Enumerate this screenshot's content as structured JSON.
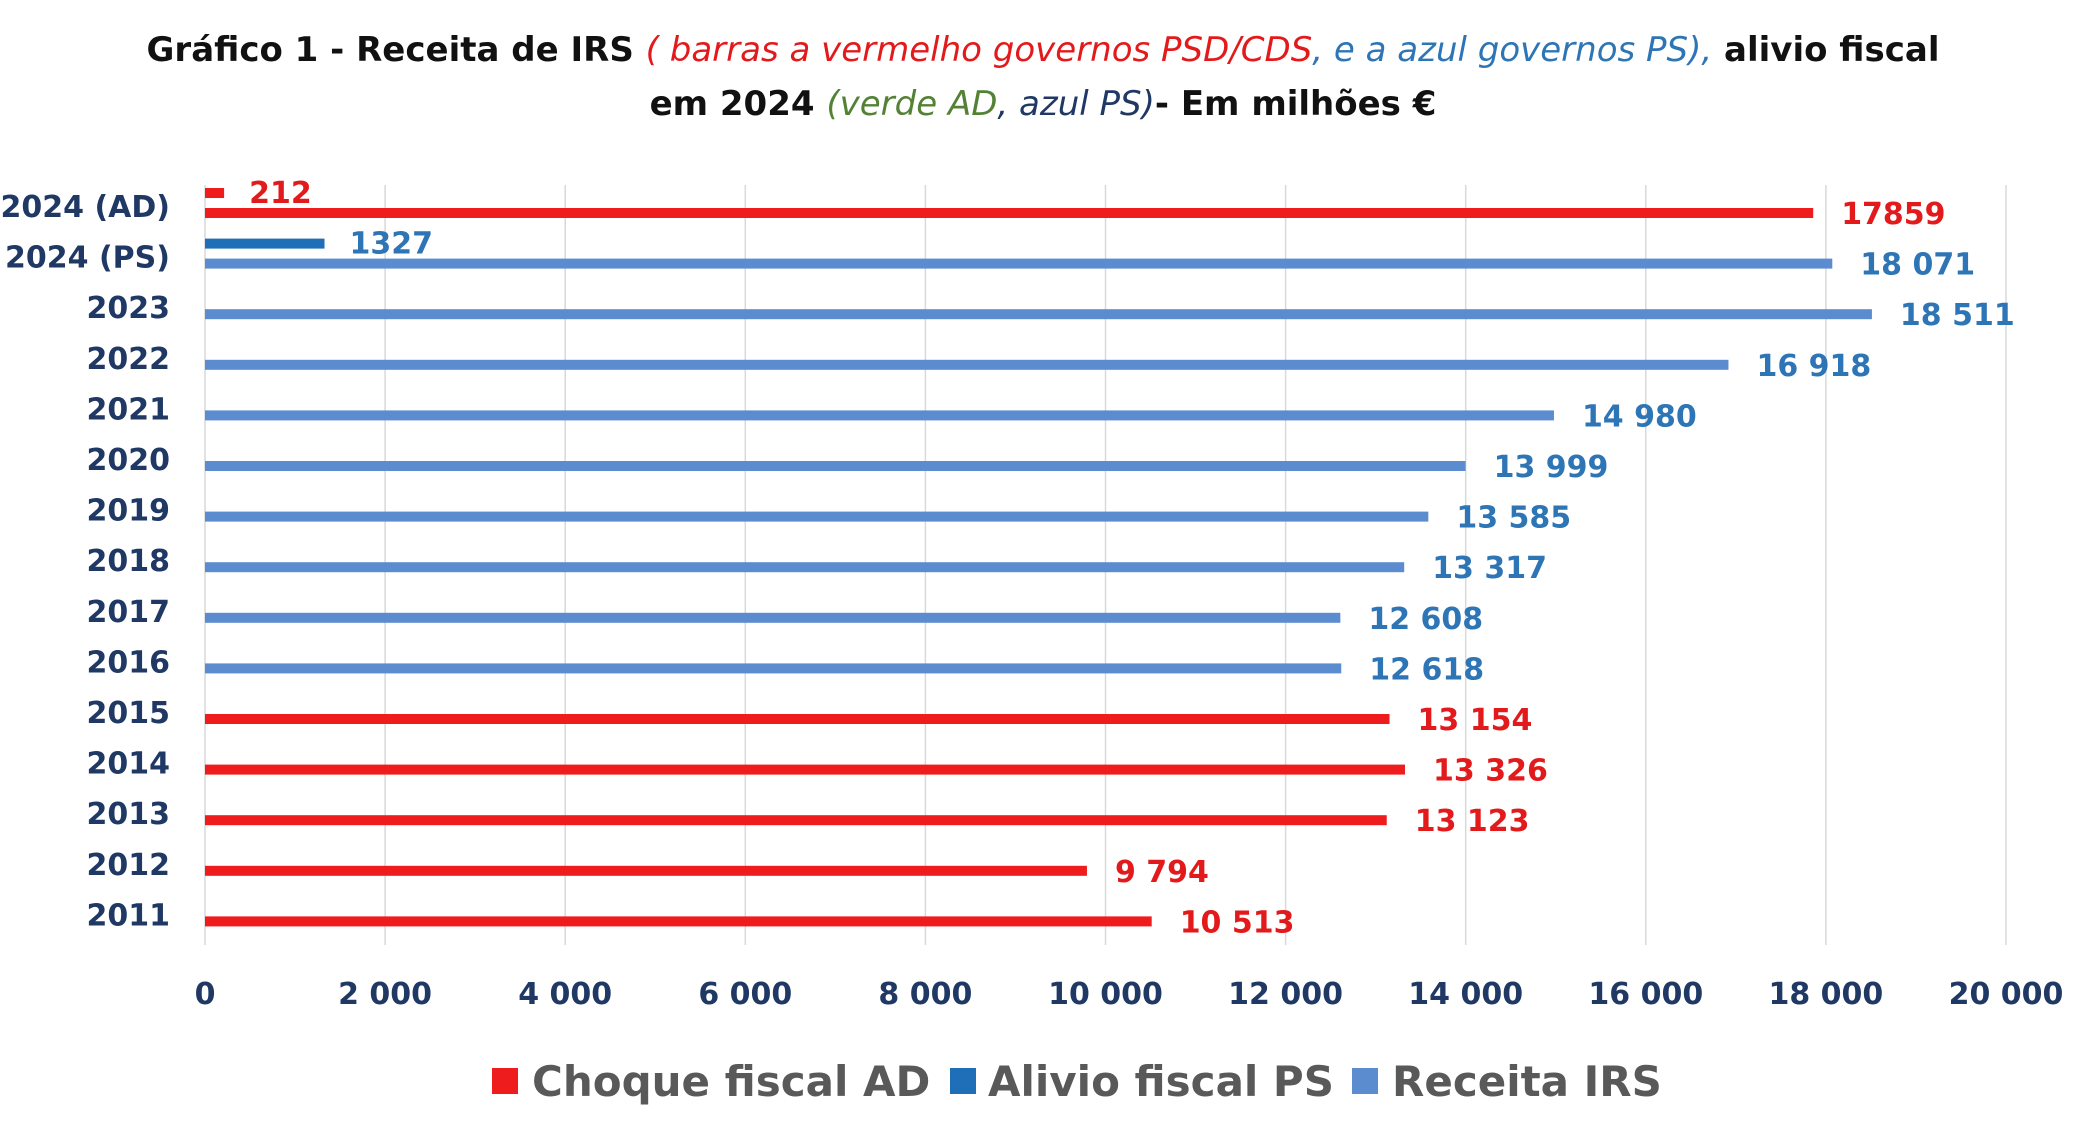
{
  "title": {
    "line1": {
      "part1": "Gráfico 1 - Receita de IRS ",
      "part2": "( barras a vermelho governos PSD/CDS",
      "part3": ", e  ",
      "part4": "a azul governos PS),",
      "part5": " alivio fiscal"
    },
    "line2": {
      "part1": "em 2024 ",
      "part2": "(verde AD",
      "part3": ", ",
      "part4": "azul PS)",
      "part5": "- Em milhões €"
    }
  },
  "colors": {
    "red": "#ee1c1c",
    "blue_dark": "#1f6fb8",
    "blue_mid": "#5b8ccf",
    "label_blue": "#2e75b6",
    "label_red": "#e31a1c",
    "axis_text": "#1f3864",
    "gridline": "#d9d9d9",
    "title_green": "#548235",
    "title_navy": "#203864"
  },
  "chart_data": {
    "type": "bar",
    "orientation": "horizontal",
    "xlim": [
      0,
      20000
    ],
    "x_ticks": [
      "0",
      "2 000",
      "4 000",
      "6 000",
      "8 000",
      "10 000",
      "12 000",
      "14 000",
      "16 000",
      "18 000",
      "20 000"
    ],
    "grid": "vertical",
    "legend_position": "bottom",
    "legend": [
      {
        "label": "Choque fiscal AD",
        "color": "#ee1c1c"
      },
      {
        "label": "Alivio fiscal PS",
        "color": "#1f6fb8"
      },
      {
        "label": "Receita IRS",
        "color": "#5b8ccf"
      }
    ],
    "categories": [
      {
        "label": "2024 (AD)",
        "bars": [
          {
            "value": 212,
            "label": "212",
            "color": "#ee1c1c",
            "label_color": "#e31a1c",
            "slot": "upper",
            "label_pos": "above-right"
          },
          {
            "value": 17859,
            "label": "17859",
            "color": "#ee1c1c",
            "label_color": "#e31a1c",
            "slot": "lower"
          }
        ]
      },
      {
        "label": "2024 (PS)",
        "bars": [
          {
            "value": 1327,
            "label": "1327",
            "color": "#1f6fb8",
            "label_color": "#2e75b6",
            "slot": "upper",
            "label_pos": "above-right"
          },
          {
            "value": 18071,
            "label": "18 071",
            "color": "#5b8ccf",
            "label_color": "#2e75b6",
            "slot": "lower"
          }
        ]
      },
      {
        "label": "2023",
        "bars": [
          {
            "value": 18511,
            "label": "18 511",
            "color": "#5b8ccf",
            "label_color": "#2e75b6",
            "slot": "lower"
          }
        ]
      },
      {
        "label": "2022",
        "bars": [
          {
            "value": 16918,
            "label": "16 918",
            "color": "#5b8ccf",
            "label_color": "#2e75b6",
            "slot": "lower"
          }
        ]
      },
      {
        "label": "2021",
        "bars": [
          {
            "value": 14980,
            "label": "14 980",
            "color": "#5b8ccf",
            "label_color": "#2e75b6",
            "slot": "lower"
          }
        ]
      },
      {
        "label": "2020",
        "bars": [
          {
            "value": 13999,
            "label": "13 999",
            "color": "#5b8ccf",
            "label_color": "#2e75b6",
            "slot": "lower"
          }
        ]
      },
      {
        "label": "2019",
        "bars": [
          {
            "value": 13585,
            "label": "13 585",
            "color": "#5b8ccf",
            "label_color": "#2e75b6",
            "slot": "lower"
          }
        ]
      },
      {
        "label": "2018",
        "bars": [
          {
            "value": 13317,
            "label": "13 317",
            "color": "#5b8ccf",
            "label_color": "#2e75b6",
            "slot": "lower"
          }
        ]
      },
      {
        "label": "2017",
        "bars": [
          {
            "value": 12608,
            "label": "12 608",
            "color": "#5b8ccf",
            "label_color": "#2e75b6",
            "slot": "lower"
          }
        ]
      },
      {
        "label": "2016",
        "bars": [
          {
            "value": 12618,
            "label": "12 618",
            "color": "#5b8ccf",
            "label_color": "#2e75b6",
            "slot": "lower"
          }
        ]
      },
      {
        "label": "2015",
        "bars": [
          {
            "value": 13154,
            "label": "13 154",
            "color": "#ee1c1c",
            "label_color": "#e31a1c",
            "slot": "lower"
          }
        ]
      },
      {
        "label": "2014",
        "bars": [
          {
            "value": 13326,
            "label": "13 326",
            "color": "#ee1c1c",
            "label_color": "#e31a1c",
            "slot": "lower"
          }
        ]
      },
      {
        "label": "2013",
        "bars": [
          {
            "value": 13123,
            "label": "13 123",
            "color": "#ee1c1c",
            "label_color": "#e31a1c",
            "slot": "lower"
          }
        ]
      },
      {
        "label": "2012",
        "bars": [
          {
            "value": 9794,
            "label": "9 794",
            "color": "#ee1c1c",
            "label_color": "#e31a1c",
            "slot": "lower"
          }
        ]
      },
      {
        "label": "2011",
        "bars": [
          {
            "value": 10513,
            "label": "10 513",
            "color": "#ee1c1c",
            "label_color": "#e31a1c",
            "slot": "lower"
          }
        ]
      }
    ]
  }
}
